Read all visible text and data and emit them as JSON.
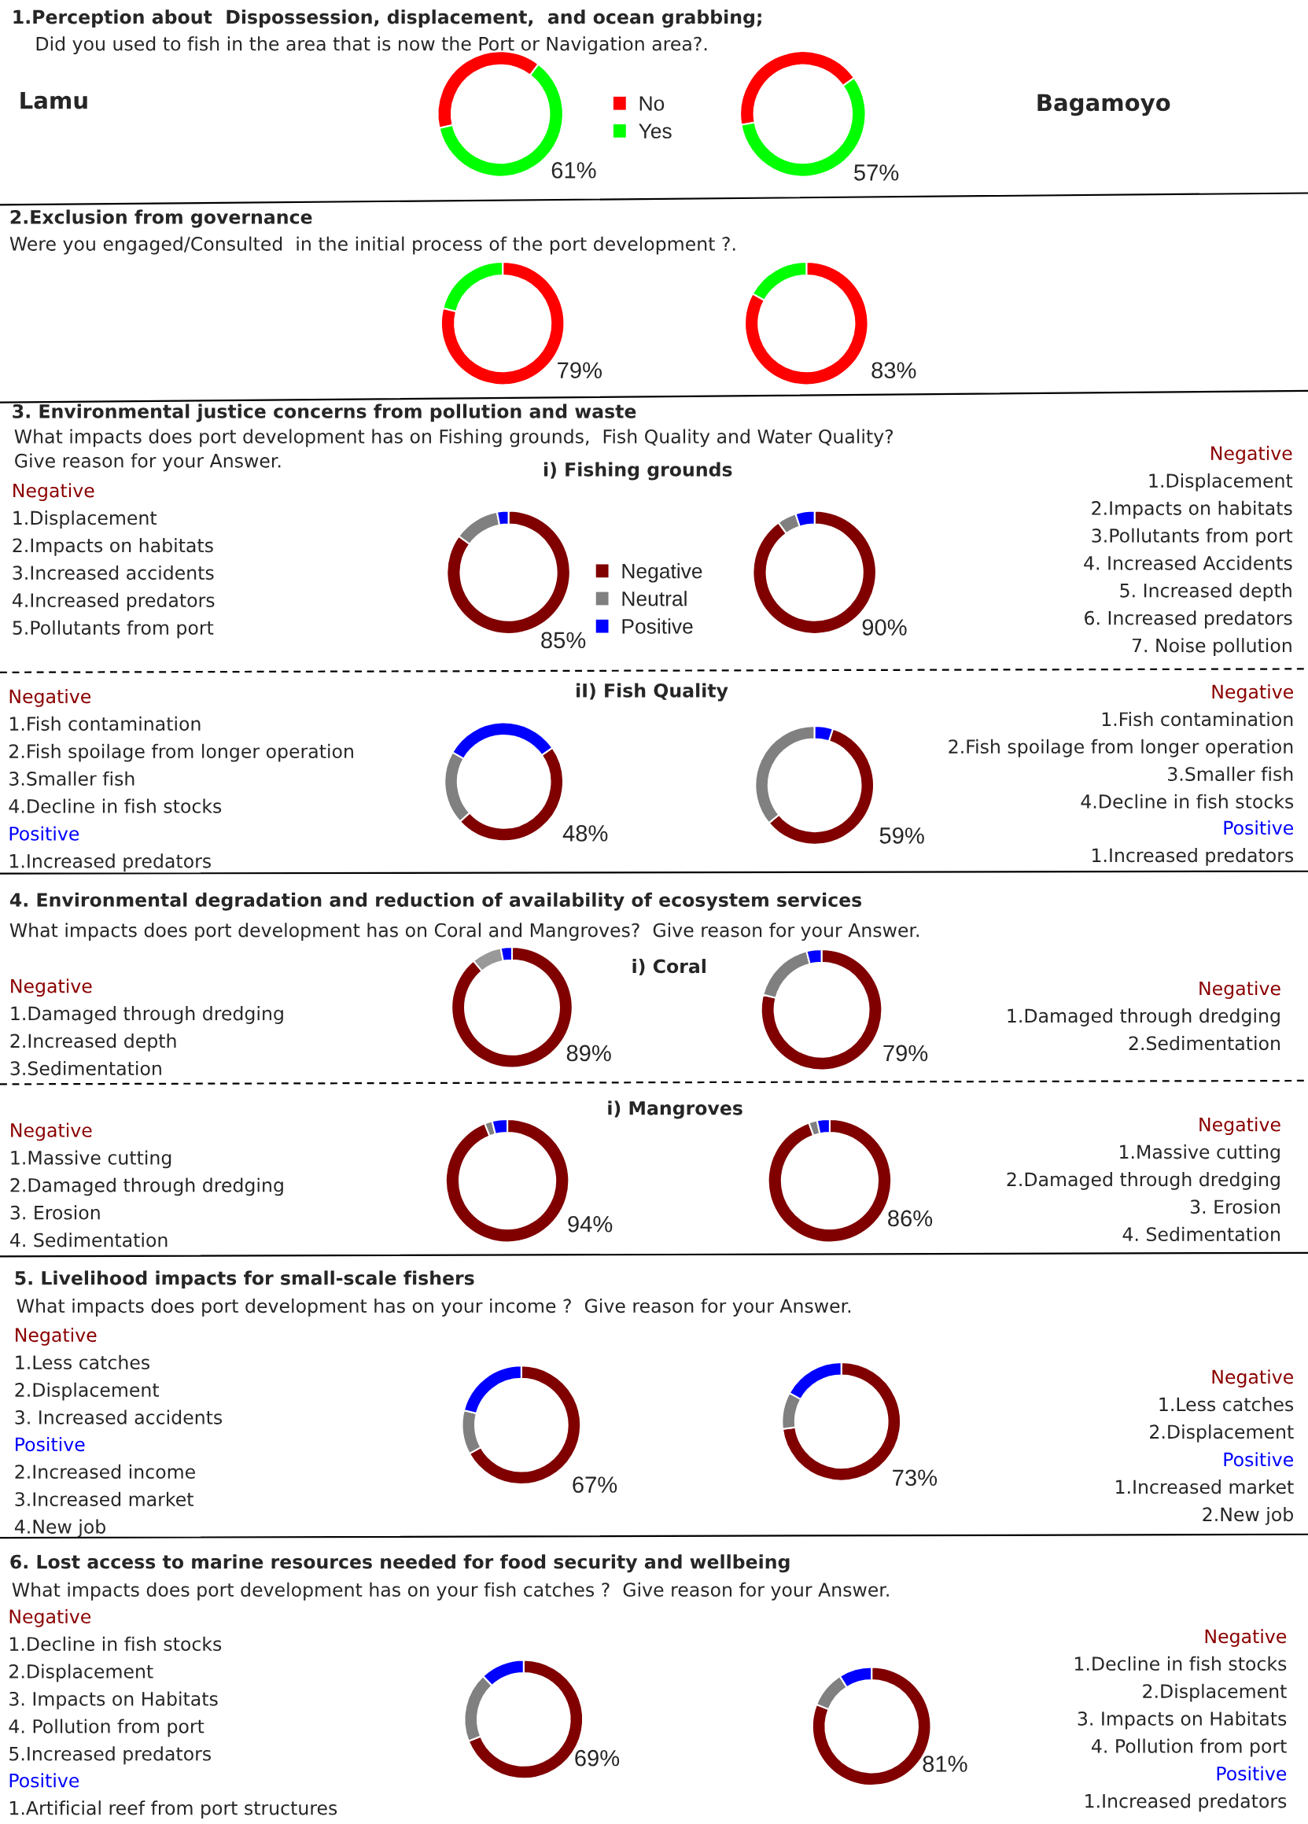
{
  "chart_data": [
    {
      "type": "other",
      "title": "1.Perception about  Dispossession, displacement,  and ocean grabbing;",
      "subtitle": "Did you used to fish in the area that is now the Port or Navigation area?.",
      "annotations": [
        "Lamu",
        "Bagamoyo"
      ]
    },
    {
      "type": "donut",
      "categories": [
        "No",
        "Yes"
      ],
      "values": [
        39,
        61
      ],
      "colors": [
        "#ff0000",
        "#00ff00"
      ],
      "value_labels": [
        null,
        "61%"
      ],
      "legend": "right"
    },
    {
      "type": "donut",
      "categories": [
        null,
        null
      ],
      "values": [
        43,
        57
      ],
      "colors": [
        "#ff0000",
        "#00ff00"
      ],
      "value_labels": [
        null,
        "57%"
      ]
    },
    {
      "type": "other",
      "title": "2.Exclusion from governance",
      "subtitle": "Were you engaged/Consulted  in the initial process of the port development ?."
    },
    {
      "type": "donut",
      "categories": [
        null,
        null
      ],
      "values": [
        79,
        21
      ],
      "colors": [
        "#ff0000",
        "#00ff00"
      ],
      "value_labels": [
        "79%",
        null
      ]
    },
    {
      "type": "donut",
      "categories": [
        null,
        null
      ],
      "values": [
        83,
        17
      ],
      "colors": [
        "#ff0000",
        "#00ff00"
      ],
      "value_labels": [
        "83%",
        null
      ]
    },
    {
      "type": "other",
      "title": "3. Environmental justice concerns from pollution and waste",
      "subtitle": "What impacts does port development has on Fishing grounds,  Fish Quality and Water Quality?\nGive reason for your Answer.",
      "annotations": [
        "i) Fishing grounds",
        "iI) Fish Quality"
      ]
    },
    {
      "type": "other",
      "title": "Negative",
      "color": "#8b0000",
      "annotations": [
        "1.Displacement",
        "2.Impacts on habitats",
        "3.Increased accidents",
        "4.Increased predators",
        "5.Pollutants from port"
      ]
    },
    {
      "type": "donut",
      "categories": [
        "Negative",
        "Neutral",
        "Positive"
      ],
      "values": [
        85,
        12,
        3
      ],
      "colors": [
        "#800000",
        "#808080",
        "#0000ff"
      ],
      "value_labels": [
        "85%",
        null,
        null
      ],
      "legend": "right"
    },
    {
      "type": "donut",
      "categories": [
        null,
        null,
        null
      ],
      "values": [
        90,
        5,
        5
      ],
      "colors": [
        "#800000",
        "#808080",
        "#0000ff"
      ],
      "value_labels": [
        "90%",
        null,
        null
      ]
    },
    {
      "type": "other",
      "title": "Negative",
      "color": "#8b0000",
      "annotations": [
        "1.Displacement",
        "2.Impacts on habitats",
        "3.Pollutants from port",
        "4. Increased Accidents",
        "5. Increased depth",
        "6. Increased predators",
        "7. Noise pollution"
      ]
    },
    {
      "type": "other",
      "title": "Negative",
      "color": "#8b0000",
      "annotations": [
        "1.Fish contamination",
        "2.Fish spoilage from longer operation",
        "3.Smaller fish",
        "4.Decline in fish stocks"
      ]
    },
    {
      "type": "other",
      "title": "Positive",
      "color": "#0000ff",
      "annotations": [
        "1.Increased predators"
      ]
    },
    {
      "type": "donut",
      "categories": [
        null,
        null,
        null
      ],
      "values": [
        48,
        20,
        32
      ],
      "colors": [
        "#800000",
        "#808080",
        "#0000ff"
      ],
      "value_labels": [
        "48%",
        null,
        null
      ]
    },
    {
      "type": "donut",
      "categories": [
        null,
        null,
        null
      ],
      "values": [
        59,
        36,
        5
      ],
      "colors": [
        "#800000",
        "#808080",
        "#0000ff"
      ],
      "value_labels": [
        "59%",
        null,
        null
      ]
    },
    {
      "type": "other",
      "title": "Negative",
      "color": "#8b0000",
      "annotations": [
        "1.Fish contamination",
        "2.Fish spoilage from longer operation",
        "3.Smaller fish",
        "4.Decline in fish stocks"
      ]
    },
    {
      "type": "other",
      "title": "Positive",
      "color": "#0000ff",
      "annotations": [
        "1.Increased predators"
      ]
    },
    {
      "type": "other",
      "title": "4. Environmental degradation and reduction of availability of ecosystem services",
      "subtitle": "What impacts does port development has on Coral and Mangroves?  Give reason for your Answer.",
      "annotations": [
        "i) Coral",
        "i) Mangroves"
      ]
    },
    {
      "type": "other",
      "title": "Negative",
      "color": "#8b0000",
      "annotations": [
        "1.Damaged through dredging",
        "2.Increased depth",
        "3.Sedimentation"
      ]
    },
    {
      "type": "donut",
      "categories": [
        null,
        null,
        null
      ],
      "values": [
        89,
        8,
        3
      ],
      "colors": [
        "#800000",
        "#999999",
        "#0000ff"
      ],
      "value_labels": [
        "89%",
        null,
        null
      ]
    },
    {
      "type": "donut",
      "categories": [
        null,
        null,
        null
      ],
      "values": [
        79,
        17,
        4
      ],
      "colors": [
        "#800000",
        "#808080",
        "#0000ff"
      ],
      "value_labels": [
        "79%",
        null,
        null
      ]
    },
    {
      "type": "other",
      "title": "Negative",
      "color": "#8b0000",
      "annotations": [
        "1.Damaged through dredging",
        "2.Sedimentation"
      ]
    },
    {
      "type": "other",
      "title": "Negative",
      "color": "#8b0000",
      "annotations": [
        "1.Massive cutting",
        "2.Damaged through dredging",
        "3. Erosion",
        "4. Sedimentation"
      ]
    },
    {
      "type": "donut",
      "categories": [
        null,
        null,
        null
      ],
      "values": [
        94,
        2,
        4
      ],
      "colors": [
        "#800000",
        "#808080",
        "#0000ff"
      ],
      "value_labels": [
        "94%",
        null,
        null
      ]
    },
    {
      "type": "donut",
      "categories": [
        null,
        null,
        null
      ],
      "values": [
        86,
        2,
        3
      ],
      "colors": [
        "#800000",
        "#808080",
        "#0000ff"
      ],
      "value_labels": [
        "86%",
        null,
        null
      ]
    },
    {
      "type": "other",
      "title": "Negative",
      "color": "#8b0000",
      "annotations": [
        "1.Massive cutting",
        "2.Damaged through dredging",
        "3. Erosion",
        "4. Sedimentation"
      ]
    },
    {
      "type": "other",
      "title": "5. Livelihood impacts for small-scale fishers",
      "subtitle": "What impacts does port development has on your income ?  Give reason for your Answer."
    },
    {
      "type": "other",
      "title": "Negative",
      "color": "#8b0000",
      "annotations": [
        "1.Less catches",
        "2.Displacement",
        "3. Increased accidents"
      ]
    },
    {
      "type": "other",
      "title": "Positive",
      "color": "#0000ff",
      "annotations": [
        "2.Increased income",
        "3.Increased market",
        "4.New job"
      ]
    },
    {
      "type": "donut",
      "categories": [
        null,
        null,
        null
      ],
      "values": [
        67,
        12,
        21
      ],
      "colors": [
        "#800000",
        "#808080",
        "#0000ff"
      ],
      "value_labels": [
        "67%",
        null,
        null
      ]
    },
    {
      "type": "donut",
      "categories": [
        null,
        null,
        null
      ],
      "values": [
        73,
        10,
        17
      ],
      "colors": [
        "#800000",
        "#808080",
        "#0000ff"
      ],
      "value_labels": [
        "73%",
        null,
        null
      ]
    },
    {
      "type": "other",
      "title": "Negative",
      "color": "#8b0000",
      "annotations": [
        "1.Less catches",
        "2.Displacement"
      ]
    },
    {
      "type": "other",
      "title": "Positive",
      "color": "#0000ff",
      "annotations": [
        "1.Increased market",
        "2.New job"
      ]
    },
    {
      "type": "other",
      "title": "6. Lost access to marine resources needed for food security and wellbeing",
      "subtitle": "What impacts does port development has on your fish catches ?  Give reason for your Answer."
    },
    {
      "type": "other",
      "title": "Negative",
      "color": "#8b0000",
      "annotations": [
        "1.Decline in fish stocks",
        "2.Displacement",
        "3. Impacts on Habitats",
        "4. Pollution from port",
        "5.Increased predators"
      ]
    },
    {
      "type": "other",
      "title": "Positive",
      "color": "#0000ff",
      "annotations": [
        "1.Artificial reef from port structures"
      ]
    },
    {
      "type": "donut",
      "categories": [
        null,
        null,
        null
      ],
      "values": [
        69,
        19,
        12
      ],
      "colors": [
        "#800000",
        "#808080",
        "#0000ff"
      ],
      "value_labels": [
        "69%",
        null,
        null
      ]
    },
    {
      "type": "donut",
      "categories": [
        null,
        null,
        null
      ],
      "values": [
        81,
        10,
        9
      ],
      "colors": [
        "#800000",
        "#808080",
        "#0000ff"
      ],
      "value_labels": [
        "81%",
        null,
        null
      ]
    },
    {
      "type": "other",
      "title": "Negative",
      "color": "#8b0000",
      "annotations": [
        "1.Decline in fish stocks",
        "2.Displacement",
        "3. Impacts on Habitats",
        "4. Pollution from port"
      ]
    },
    {
      "type": "other",
      "title": "Positive",
      "color": "#0000ff",
      "annotations": [
        "1.Increased predators"
      ]
    }
  ]
}
